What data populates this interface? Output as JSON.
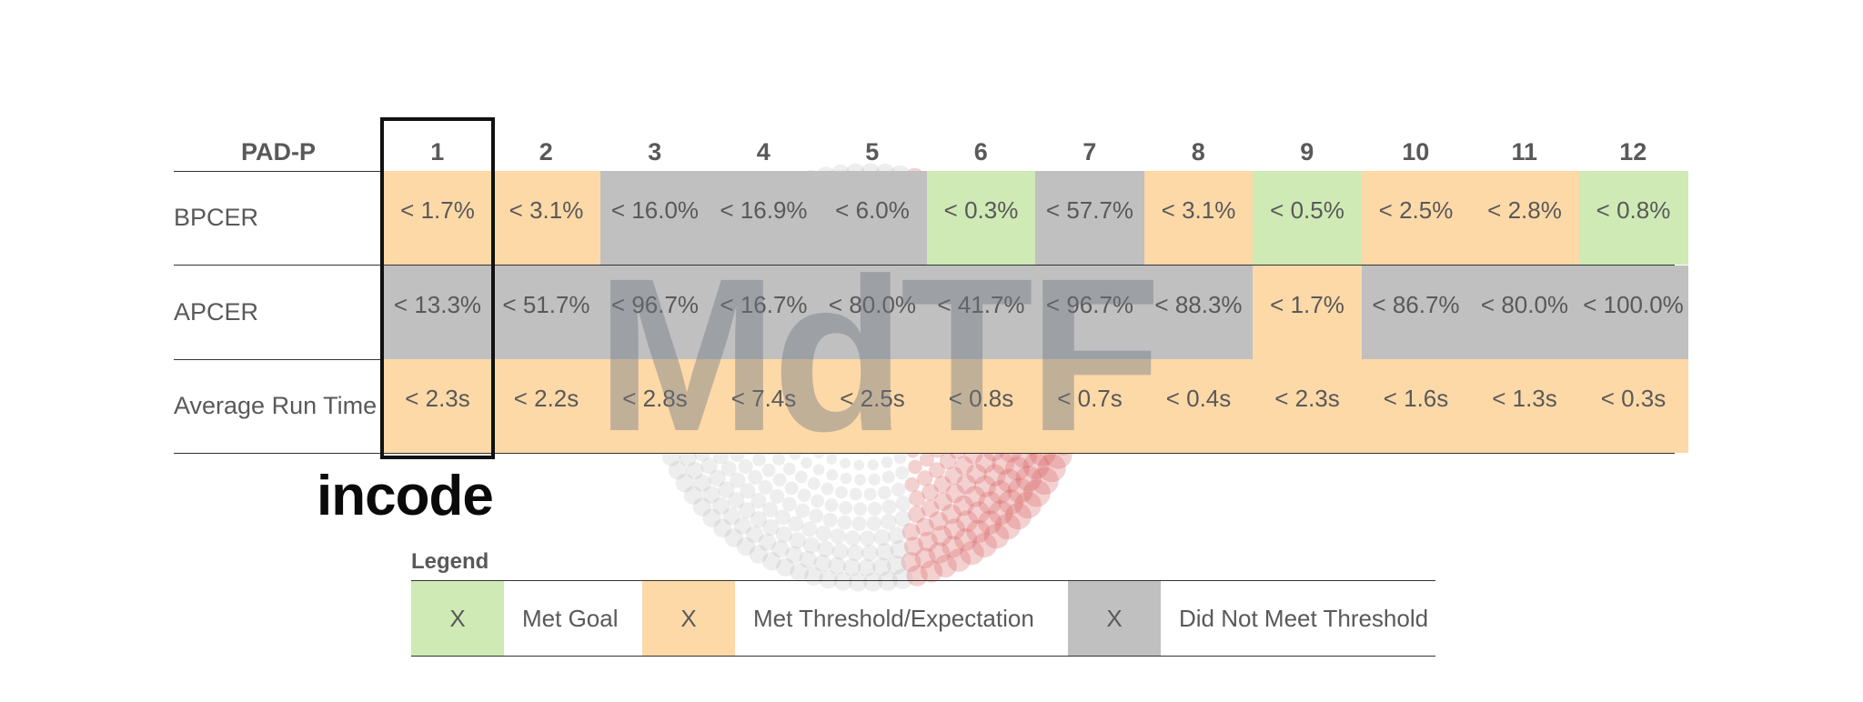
{
  "chart_data": {
    "type": "table",
    "corner_header": "PAD-P",
    "columns": [
      "1",
      "2",
      "3",
      "4",
      "5",
      "6",
      "7",
      "8",
      "9",
      "10",
      "11",
      "12"
    ],
    "rows": [
      {
        "label": "BPCER",
        "values": [
          "< 1.7%",
          "< 3.1%",
          "< 16.0%",
          "< 16.9%",
          "< 6.0%",
          "< 0.3%",
          "< 57.7%",
          "< 3.1%",
          "< 0.5%",
          "< 2.5%",
          "< 2.8%",
          "< 0.8%"
        ],
        "status": [
          "threshold",
          "threshold",
          "not_met",
          "not_met",
          "not_met",
          "goal",
          "not_met",
          "threshold",
          "goal",
          "threshold",
          "threshold",
          "goal"
        ]
      },
      {
        "label": "APCER",
        "values": [
          "< 13.3%",
          "< 51.7%",
          "< 96.7%",
          "< 16.7%",
          "< 80.0%",
          "< 41.7%",
          "< 96.7%",
          "< 88.3%",
          "< 1.7%",
          "< 86.7%",
          "< 80.0%",
          "< 100.0%"
        ],
        "status": [
          "not_met",
          "not_met",
          "not_met",
          "not_met",
          "not_met",
          "not_met",
          "not_met",
          "not_met",
          "threshold",
          "not_met",
          "not_met",
          "not_met"
        ]
      },
      {
        "label": "Average Run Time",
        "values": [
          "< 2.3s",
          "< 2.2s",
          "< 2.8s",
          "< 7.4s",
          "< 2.5s",
          "< 0.8s",
          "< 0.7s",
          "< 0.4s",
          "< 2.3s",
          "< 1.6s",
          "< 1.3s",
          "< 0.3s"
        ],
        "status": [
          "threshold",
          "threshold",
          "threshold",
          "threshold",
          "threshold",
          "threshold",
          "threshold",
          "threshold",
          "threshold",
          "threshold",
          "threshold",
          "threshold"
        ]
      }
    ],
    "highlighted_column": "1",
    "legend": {
      "title": "Legend",
      "items": [
        {
          "status": "goal",
          "mark": "X",
          "label": "Met Goal"
        },
        {
          "status": "threshold",
          "mark": "X",
          "label": "Met Threshold/Expectation"
        },
        {
          "status": "not_met",
          "mark": "X",
          "label": "Did Not Meet Threshold"
        }
      ]
    }
  },
  "colors": {
    "goal": "#cfeab5",
    "threshold": "#fdd9a8",
    "not_met": "#c0c0c0"
  },
  "logo_text": "incode",
  "watermark_text": "MdTF"
}
